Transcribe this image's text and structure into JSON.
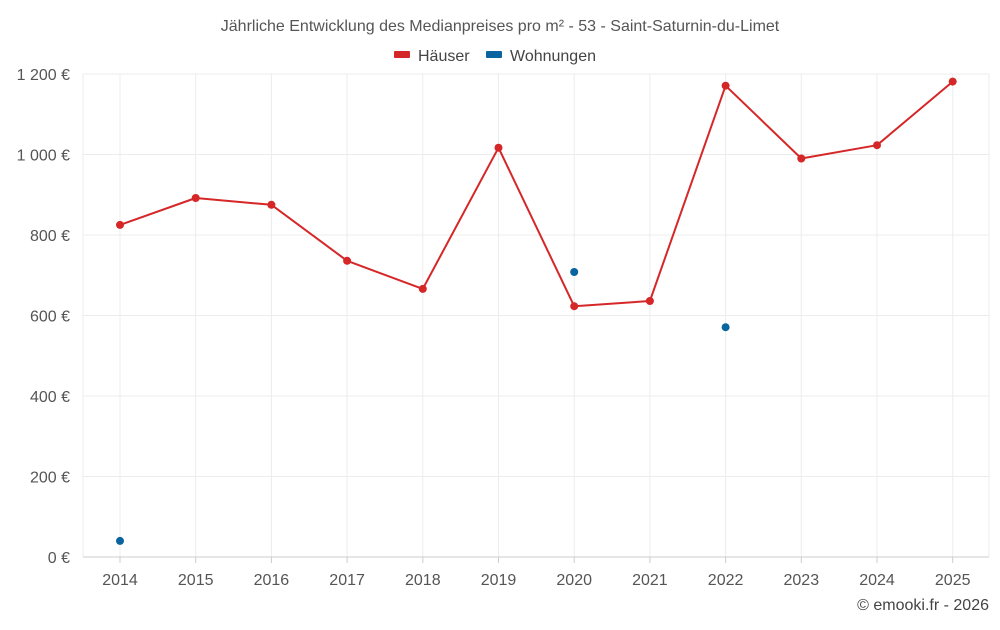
{
  "chart_data": {
    "type": "line",
    "title": "Jährliche Entwicklung des Medianpreises pro m² - 53 - Saint-Saturnin-du-Limet",
    "xlabel": "",
    "ylabel": "",
    "categories": [
      "2014",
      "2015",
      "2016",
      "2017",
      "2018",
      "2019",
      "2020",
      "2021",
      "2022",
      "2023",
      "2024",
      "2025"
    ],
    "ylim": [
      0,
      1200
    ],
    "yticks": [
      0,
      200,
      400,
      600,
      800,
      1000,
      1200
    ],
    "ytick_labels": [
      "0 €",
      "200 €",
      "400 €",
      "600 €",
      "800 €",
      "1 000 €",
      "1 200 €"
    ],
    "grid": true,
    "legend_position": "top-center",
    "series": [
      {
        "name": "Häuser",
        "color": "#d62728",
        "line": true,
        "values": [
          825,
          892,
          875,
          736,
          666,
          1017,
          623,
          636,
          1171,
          990,
          1023,
          1181
        ]
      },
      {
        "name": "Wohnungen",
        "color": "#0a64a0",
        "line": false,
        "values": [
          40,
          null,
          null,
          null,
          null,
          null,
          708,
          null,
          571,
          null,
          null,
          null
        ]
      }
    ]
  },
  "credit": "© emooki.fr - 2026"
}
